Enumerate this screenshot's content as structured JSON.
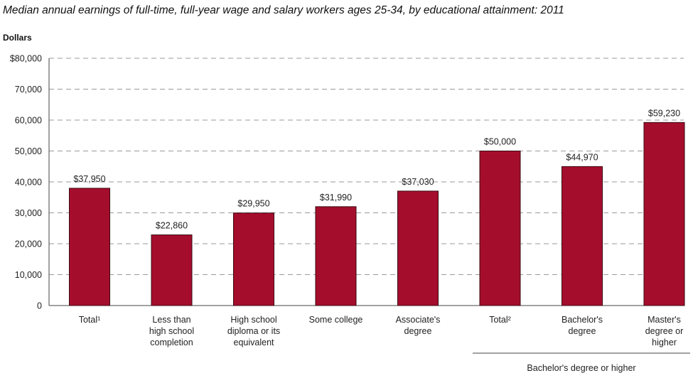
{
  "title": "Median annual earnings of full-time, full-year wage and salary workers ages 25-34, by educational attainment: 2011",
  "chart_data": {
    "type": "bar",
    "title": "Median annual earnings of full-time, full-year wage and salary workers ages 25-34, by educational attainment: 2011",
    "ylabel": "Dollars",
    "xlabel": "",
    "ylim": [
      0,
      80000
    ],
    "y_ticks": [
      {
        "value": 0,
        "label": "0"
      },
      {
        "value": 10000,
        "label": "10,000"
      },
      {
        "value": 20000,
        "label": "20,000"
      },
      {
        "value": 30000,
        "label": "30,000"
      },
      {
        "value": 40000,
        "label": "40,000"
      },
      {
        "value": 50000,
        "label": "50,000"
      },
      {
        "value": 60000,
        "label": "60,000"
      },
      {
        "value": 70000,
        "label": "70,000"
      },
      {
        "value": 80000,
        "label": "$80,000"
      }
    ],
    "grid": true,
    "bar_color": "#a50d2d",
    "categories": [
      [
        "Total¹"
      ],
      [
        "Less than",
        "high school",
        "completion"
      ],
      [
        "High school",
        "diploma or its",
        "equivalent"
      ],
      [
        "Some college"
      ],
      [
        "Associate's",
        "degree"
      ],
      [
        "Total²"
      ],
      [
        "Bachelor's",
        "degree"
      ],
      [
        "Master's",
        "degree or",
        "higher"
      ]
    ],
    "values": [
      37950,
      22860,
      29950,
      31990,
      37030,
      50000,
      44970,
      59230
    ],
    "value_labels": [
      "$37,950",
      "$22,860",
      "$29,950",
      "$31,990",
      "$37,030",
      "$50,000",
      "$44,970",
      "$59,230"
    ],
    "group": {
      "label": "Bachelor's degree or higher",
      "start_index": 5,
      "end_index": 7
    }
  }
}
